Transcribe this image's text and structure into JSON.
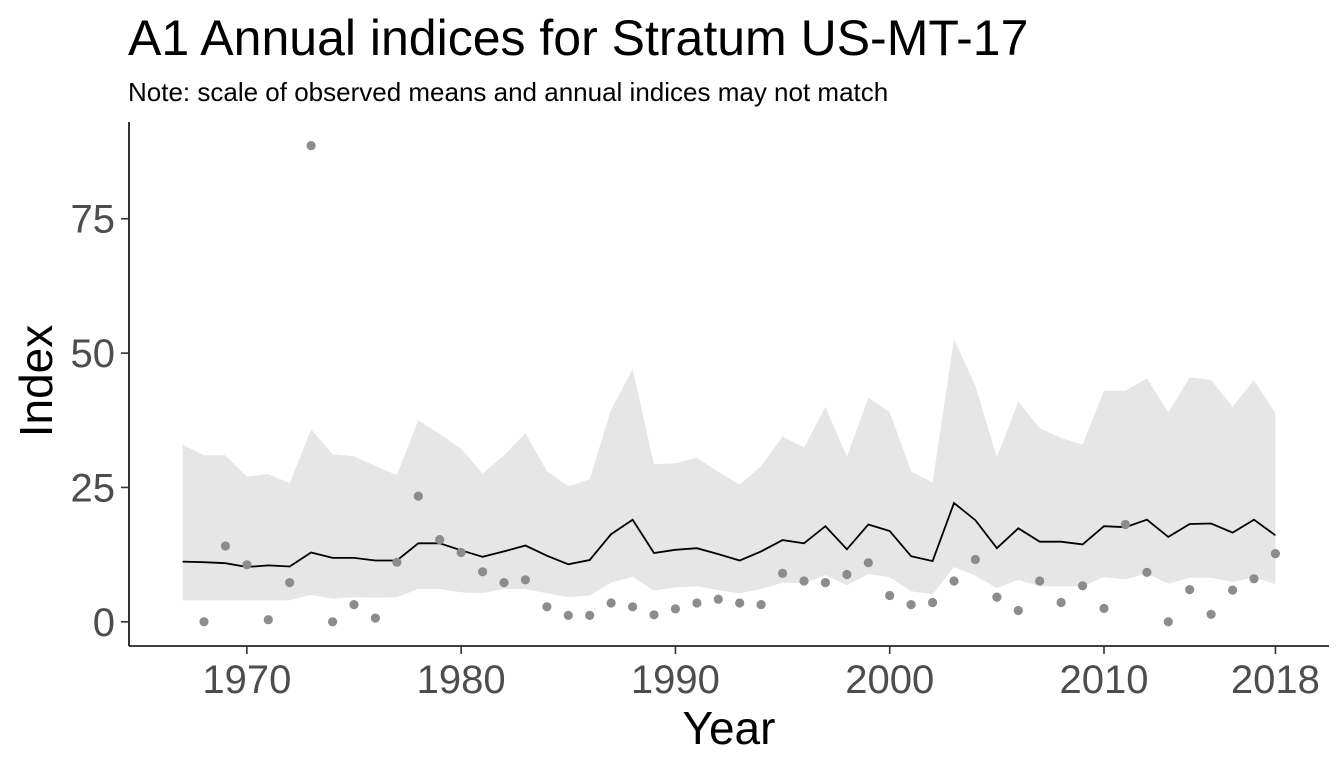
{
  "chart_data": {
    "type": "line",
    "title": "A1 Annual indices for Stratum US-MT-17",
    "subtitle": "Note: scale of observed means and annual indices may not match",
    "xlabel": "Year",
    "ylabel": "Index",
    "xlim": [
      1964.5,
      2020.5
    ],
    "ylim": [
      -4.5,
      93
    ],
    "x_ticks": [
      1970,
      1980,
      1990,
      2000,
      2010,
      2018
    ],
    "y_ticks": [
      0,
      25,
      50,
      75
    ],
    "grid": false,
    "legend": "none",
    "colors": {
      "band": "#e6e6e6",
      "line": "#000000",
      "points": "#8c8c8c",
      "ticks": "#4d4d4d"
    },
    "annual_index": {
      "x": [
        1967,
        1968,
        1969,
        1970,
        1971,
        1972,
        1973,
        1974,
        1975,
        1976,
        1977,
        1978,
        1979,
        1980,
        1981,
        1982,
        1983,
        1984,
        1985,
        1986,
        1987,
        1988,
        1989,
        1990,
        1991,
        1992,
        1993,
        1994,
        1995,
        1996,
        1997,
        1998,
        1999,
        2000,
        2001,
        2002,
        2003,
        2004,
        2005,
        2006,
        2007,
        2008,
        2009,
        2010,
        2011,
        2012,
        2013,
        2014,
        2015,
        2016,
        2017,
        2018
      ],
      "y": [
        11.2,
        11.1,
        10.9,
        10.2,
        10.5,
        10.3,
        12.9,
        11.9,
        11.9,
        11.4,
        11.4,
        14.6,
        14.6,
        13.3,
        12.1,
        13.1,
        14.2,
        12.3,
        10.7,
        11.5,
        16.3,
        19.0,
        12.8,
        13.4,
        13.7,
        12.6,
        11.4,
        13.1,
        15.2,
        14.6,
        17.8,
        13.5,
        18.1,
        16.9,
        12.2,
        11.3,
        22.1,
        18.9,
        13.7,
        17.4,
        14.9,
        14.9,
        14.4,
        17.8,
        17.6,
        19.0,
        15.8,
        18.2,
        18.3,
        16.6,
        19.0,
        16.1
      ]
    },
    "credible_interval": {
      "lower": [
        4.0,
        4.0,
        4.0,
        4.0,
        4.0,
        4.0,
        5.0,
        4.3,
        4.6,
        4.5,
        4.6,
        6.1,
        6.1,
        5.5,
        5.3,
        6.1,
        6.1,
        5.3,
        4.6,
        4.9,
        7.3,
        8.4,
        5.8,
        6.4,
        6.6,
        5.9,
        5.3,
        6.1,
        7.3,
        7.2,
        8.7,
        6.8,
        8.9,
        8.3,
        5.7,
        5.1,
        10.2,
        8.6,
        6.3,
        7.8,
        6.6,
        6.6,
        6.6,
        8.3,
        7.9,
        9.0,
        7.1,
        8.2,
        8.2,
        7.4,
        8.3,
        7.0
      ],
      "upper": [
        33.0,
        31.0,
        31.0,
        27.0,
        27.5,
        25.8,
        35.8,
        31.2,
        30.8,
        29.0,
        27.3,
        37.5,
        35.0,
        32.2,
        27.6,
        31.0,
        35.1,
        28.0,
        25.2,
        26.5,
        39.5,
        47.0,
        29.3,
        29.5,
        30.5,
        27.9,
        25.5,
        29.0,
        34.5,
        32.4,
        40.0,
        30.7,
        41.7,
        39.0,
        28.0,
        25.9,
        52.6,
        43.9,
        30.6,
        41.0,
        36.0,
        34.2,
        33.0,
        43.0,
        43.0,
        45.3,
        39.0,
        45.5,
        45.0,
        40.0,
        45.0,
        38.8
      ]
    },
    "observed_means": {
      "x": [
        1968,
        1969,
        1970,
        1971,
        1972,
        1973,
        1974,
        1975,
        1976,
        1977,
        1978,
        1979,
        1980,
        1981,
        1982,
        1983,
        1984,
        1985,
        1986,
        1987,
        1988,
        1989,
        1990,
        1991,
        1992,
        1993,
        1994,
        1995,
        1996,
        1997,
        1998,
        1999,
        2000,
        2001,
        2002,
        2003,
        2004,
        2005,
        2006,
        2007,
        2008,
        2009,
        2010,
        2011,
        2012,
        2013,
        2014,
        2015,
        2016,
        2017,
        2018
      ],
      "y": [
        0.0,
        14.1,
        10.6,
        0.4,
        7.3,
        88.6,
        0.0,
        3.2,
        0.7,
        11.1,
        23.4,
        15.3,
        12.9,
        9.3,
        7.3,
        7.8,
        2.8,
        1.2,
        1.2,
        3.5,
        2.8,
        1.3,
        2.4,
        3.5,
        4.2,
        3.5,
        3.2,
        9.0,
        7.6,
        7.3,
        8.8,
        11.0,
        4.9,
        3.2,
        3.6,
        7.6,
        11.6,
        4.6,
        2.1,
        7.6,
        3.6,
        6.7,
        2.5,
        18.1,
        9.2,
        0.0,
        6.0,
        1.4,
        5.9,
        8.0,
        12.7
      ]
    }
  }
}
